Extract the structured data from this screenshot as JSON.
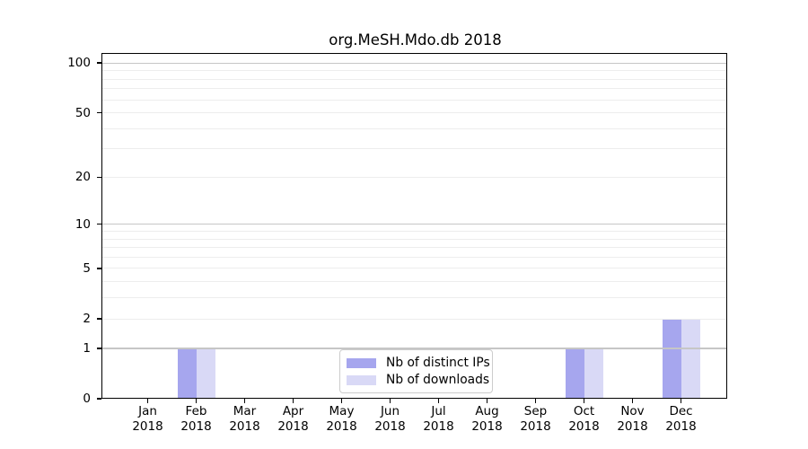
{
  "chart_data": {
    "type": "bar",
    "title": "org.MeSH.Mdo.db 2018",
    "categories": [
      "Jan 2018",
      "Feb 2018",
      "Mar 2018",
      "Apr 2018",
      "May 2018",
      "Jun 2018",
      "Jul 2018",
      "Aug 2018",
      "Sep 2018",
      "Oct 2018",
      "Nov 2018",
      "Dec 2018"
    ],
    "series": [
      {
        "name": "Nb of distinct IPs",
        "color": "#a6a6ee",
        "values": [
          0,
          1,
          0,
          0,
          0,
          0,
          0,
          0,
          0,
          1,
          0,
          2
        ]
      },
      {
        "name": "Nb of downloads",
        "color": "#d9d9f6",
        "values": [
          0,
          1,
          0,
          0,
          0,
          0,
          0,
          0,
          0,
          1,
          0,
          2
        ]
      }
    ],
    "xlabel": "",
    "ylabel": "",
    "y_ticks": [
      0,
      1,
      2,
      5,
      10,
      20,
      50,
      100
    ],
    "y_scale": "log1p",
    "ylim": [
      0,
      113
    ],
    "grid": true,
    "legend_position": "inside-bottom-center"
  }
}
